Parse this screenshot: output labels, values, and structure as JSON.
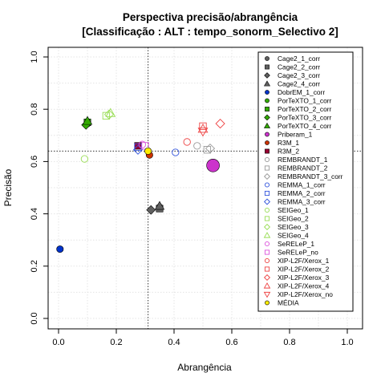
{
  "chart_data": {
    "type": "scatter",
    "title_line1": "Perspectiva precisão/abrangência",
    "title_line2": "[Classificação : ALT : tempo_sonorm_Selectivo 2]",
    "xlabel": "Abrangência",
    "ylabel": "Precisão",
    "xlim": [
      0,
      1
    ],
    "ylim": [
      0,
      1
    ],
    "xticks": [
      "0.0",
      "0.2",
      "0.4",
      "0.6",
      "0.8",
      "1.0"
    ],
    "yticks": [
      "0.0",
      "0.2",
      "0.4",
      "0.6",
      "0.8",
      "1.0"
    ],
    "grid": true,
    "legend_position": "top-right",
    "reference_lines": {
      "x": 0.31,
      "y": 0.64
    },
    "series": [
      {
        "name": "Cage2_1_corr",
        "shape": "circle",
        "color": "#606060",
        "filled": true,
        "points": [
          [
            0.35,
            0.425
          ]
        ]
      },
      {
        "name": "Cage2_2_corr",
        "shape": "square",
        "color": "#606060",
        "filled": true,
        "points": [
          [
            0.35,
            0.42
          ]
        ]
      },
      {
        "name": "Cage2_3_corr",
        "shape": "diamond",
        "color": "#606060",
        "filled": true,
        "points": [
          [
            0.32,
            0.415
          ]
        ]
      },
      {
        "name": "Cage2_4_corr",
        "shape": "triangle",
        "color": "#606060",
        "filled": true,
        "points": [
          [
            0.35,
            0.43
          ]
        ]
      },
      {
        "name": "DobrEM_1_corr",
        "shape": "circle",
        "color": "#0033cc",
        "filled": true,
        "points": [
          [
            0.005,
            0.265
          ]
        ]
      },
      {
        "name": "PorTeXTO_1_corr",
        "shape": "circle",
        "color": "#33aa00",
        "filled": true,
        "points": [
          [
            0.1,
            0.745
          ]
        ]
      },
      {
        "name": "PorTeXTO_2_corr",
        "shape": "square",
        "color": "#33aa00",
        "filled": true,
        "points": [
          [
            0.1,
            0.75
          ]
        ]
      },
      {
        "name": "PorTeXTO_3_corr",
        "shape": "diamond",
        "color": "#33aa00",
        "filled": true,
        "points": [
          [
            0.095,
            0.74
          ]
        ]
      },
      {
        "name": "PorTeXTO_4_corr",
        "shape": "triangle",
        "color": "#33aa00",
        "filled": true,
        "points": [
          [
            0.1,
            0.755
          ]
        ]
      },
      {
        "name": "Priberam_1",
        "shape": "circle",
        "color": "#cc33cc",
        "filled": true,
        "points": [
          [
            0.535,
            0.585
          ]
        ]
      },
      {
        "name": "R3M_1",
        "shape": "circle",
        "color": "#cc3300",
        "filled": true,
        "points": [
          [
            0.315,
            0.625
          ]
        ]
      },
      {
        "name": "R3M_2",
        "shape": "square",
        "color": "#990033",
        "filled": true,
        "points": [
          [
            0.275,
            0.66
          ]
        ]
      },
      {
        "name": "REMBRANDT_1",
        "shape": "circle",
        "color": "#999999",
        "filled": false,
        "points": [
          [
            0.48,
            0.66
          ]
        ]
      },
      {
        "name": "REMBRANDT_2",
        "shape": "square",
        "color": "#999999",
        "filled": false,
        "points": [
          [
            0.515,
            0.645
          ]
        ]
      },
      {
        "name": "REMBRANDT_3_corr",
        "shape": "diamond",
        "color": "#999999",
        "filled": false,
        "points": [
          [
            0.525,
            0.65
          ]
        ]
      },
      {
        "name": "REMMA_1_corr",
        "shape": "circle",
        "color": "#3355dd",
        "filled": false,
        "points": [
          [
            0.405,
            0.635
          ]
        ]
      },
      {
        "name": "REMMA_2_corr",
        "shape": "square",
        "color": "#3355dd",
        "filled": false,
        "points": [
          [
            0.275,
            0.655
          ]
        ]
      },
      {
        "name": "REMMA_3_corr",
        "shape": "diamond",
        "color": "#3355dd",
        "filled": false,
        "points": [
          [
            0.275,
            0.645
          ]
        ]
      },
      {
        "name": "SEIGeo_1",
        "shape": "circle",
        "color": "#99dd55",
        "filled": false,
        "points": [
          [
            0.09,
            0.61
          ]
        ]
      },
      {
        "name": "SEIGeo_2",
        "shape": "square",
        "color": "#99dd55",
        "filled": false,
        "points": [
          [
            0.165,
            0.775
          ]
        ]
      },
      {
        "name": "SEIGeo_3",
        "shape": "diamond",
        "color": "#99dd55",
        "filled": false,
        "points": [
          [
            0.175,
            0.78
          ]
        ]
      },
      {
        "name": "SEIGeo_4",
        "shape": "triangle",
        "color": "#99dd55",
        "filled": false,
        "points": [
          [
            0.18,
            0.785
          ]
        ]
      },
      {
        "name": "SeRELeP_1",
        "shape": "circle",
        "color": "#dd55dd",
        "filled": false,
        "points": [
          [
            0.29,
            0.665
          ]
        ]
      },
      {
        "name": "SeRELeP_no",
        "shape": "square",
        "color": "#dd55dd",
        "filled": false,
        "points": [
          [
            0.3,
            0.66
          ]
        ]
      },
      {
        "name": "XIP-L2F/Xerox_1",
        "shape": "circle",
        "color": "#ee4444",
        "filled": false,
        "points": [
          [
            0.445,
            0.675
          ]
        ]
      },
      {
        "name": "XIP-L2F/Xerox_2",
        "shape": "square",
        "color": "#ee4444",
        "filled": false,
        "points": [
          [
            0.5,
            0.735
          ]
        ]
      },
      {
        "name": "XIP-L2F/Xerox_3",
        "shape": "diamond",
        "color": "#ee4444",
        "filled": false,
        "points": [
          [
            0.56,
            0.745
          ]
        ]
      },
      {
        "name": "XIP-L2F/Xerox_4",
        "shape": "triangle",
        "color": "#ee4444",
        "filled": false,
        "points": [
          [
            0.5,
            0.725
          ]
        ]
      },
      {
        "name": "XIP-L2F/Xerox_no",
        "shape": "triangle-down",
        "color": "#ee4444",
        "filled": false,
        "points": [
          [
            0.5,
            0.715
          ]
        ]
      },
      {
        "name": "MÉDIA",
        "shape": "circle",
        "color": "#ffee00",
        "filled": true,
        "points": [
          [
            0.31,
            0.64
          ]
        ]
      }
    ]
  }
}
